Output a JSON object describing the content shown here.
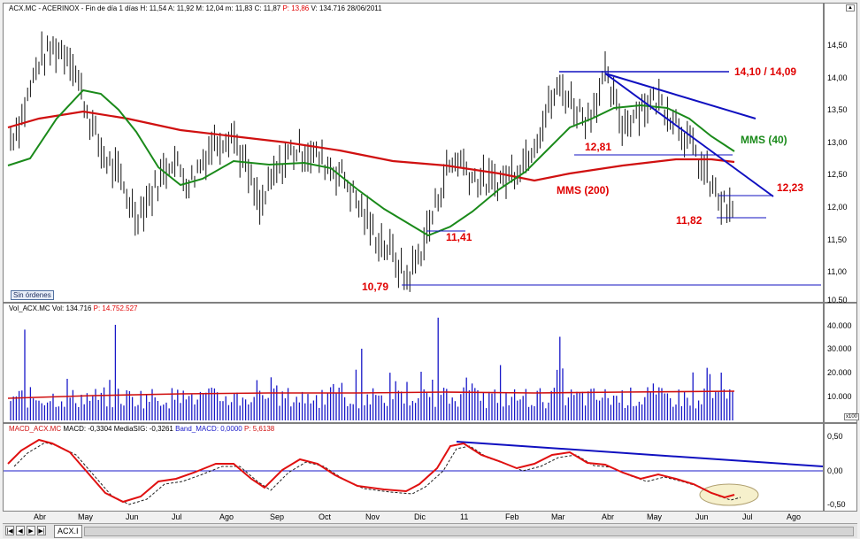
{
  "price_pane": {
    "header": {
      "symbol": "ACX.MC - ACERINOX - Fin de día 1 días",
      "high": "H: 11,54",
      "ask": "A: 11,92",
      "mid": "M: 12,04",
      "low": "m: 11,83",
      "close": "C: 11,87",
      "p": "P: 13,86",
      "volume": "V: 134.716",
      "date": "28/06/2011"
    },
    "y_ticks": [
      "14,50",
      "14,00",
      "13,50",
      "13,00",
      "12,50",
      "12,00",
      "11,50",
      "11,00",
      "10,50"
    ],
    "orders_button": "Sin órdenes",
    "annotations": {
      "resistance": "14,10 / 14,09",
      "mms40": "MMS (40)",
      "level_1281": "12,81",
      "mms200": "MMS (200)",
      "level_1223": "12,23",
      "level_1182": "11,82",
      "level_1141": "11,41",
      "level_1079": "10,79"
    },
    "colors": {
      "mms40": "#1a8a1a",
      "mms200": "#d01010",
      "trendline": "#1010c0",
      "bars": "#000000",
      "annotation": "#e00000"
    }
  },
  "volume_pane": {
    "header": {
      "title": "Vol_ACX.MC",
      "vol": "Vol: 134.716",
      "p": "P: 14.752.527"
    },
    "y_ticks": [
      "40.000",
      "30.000",
      "20.000",
      "10.000"
    ],
    "scale_badge": "x100"
  },
  "macd_pane": {
    "header": {
      "title": "MACD_ACX.MC",
      "macd": "MACD: -0,3304",
      "signal": "MediaSIG: -0,3261",
      "band": "Band_MACD: 0,0000",
      "p": "P: 5,6138"
    },
    "y_ticks": [
      "0,50",
      "0,00",
      "-0,50"
    ]
  },
  "x_axis": {
    "labels": [
      "Abr",
      "May",
      "Jun",
      "Jul",
      "Ago",
      "Sep",
      "Oct",
      "Nov",
      "Dic",
      "11",
      "Feb",
      "Mar",
      "Abr",
      "May",
      "Jun",
      "Jul",
      "Ago"
    ]
  },
  "bottom_bar": {
    "tab_label": "ACX.I"
  }
}
